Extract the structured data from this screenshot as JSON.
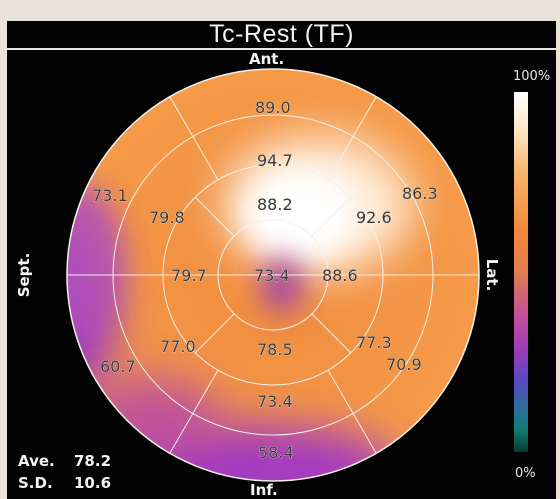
{
  "title": "Tc-Rest (TF)",
  "directions": {
    "anterior": "Ant.",
    "inferior": "Inf.",
    "septal": "Sept.",
    "lateral": "Lat."
  },
  "stats": {
    "ave_label": "Ave.",
    "ave_value": "78.2",
    "sd_label": "S.D.",
    "sd_value": "10.6"
  },
  "color_scale": {
    "max_label": "100%",
    "min_label": "0%"
  },
  "segments": {
    "outer_anterior": "89.0",
    "mid_anterior": "94.7",
    "outer_anteroseptal": "73.1",
    "mid_anteroseptal": "79.8",
    "inner_anterior": "88.2",
    "mid_anterolateral": "92.6",
    "outer_anterolateral": "86.3",
    "inner_septal": "79.7",
    "apex": "73.4",
    "inner_lateral": "88.6",
    "mid_inferoseptal": "77.0",
    "inner_inferior": "78.5",
    "mid_inferolateral": "77.3",
    "outer_inferoseptal": "60.7",
    "outer_inferolateral": "70.9",
    "mid_inferior": "73.4",
    "outer_inferior": "58.4"
  }
}
